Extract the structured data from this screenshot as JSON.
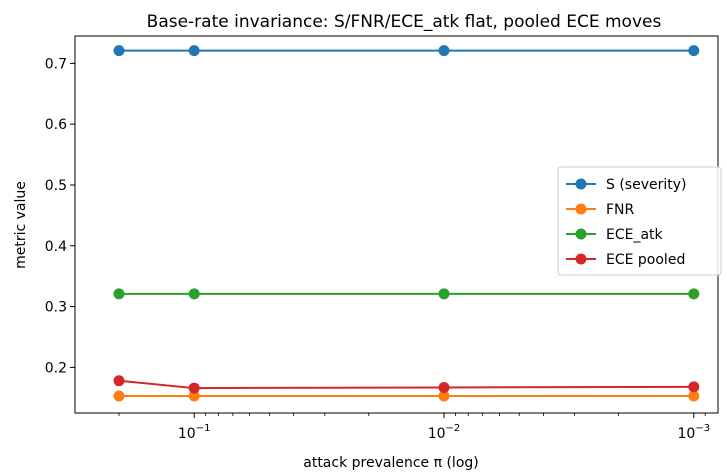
{
  "chart_data": {
    "type": "line",
    "title": "Base-rate invariance: S/FNR/ECE_atk flat, pooled ECE moves",
    "xlabel": "attack prevalence π (log)",
    "ylabel": "metric value",
    "x_scale": "log",
    "x_inverted": true,
    "x": [
      0.2,
      0.1,
      0.01,
      0.001
    ],
    "xlim": [
      0.3,
      0.0008
    ],
    "ylim": [
      0.125,
      0.745
    ],
    "x_ticks": [
      {
        "value": 0.1,
        "base": "10",
        "exp": "−1"
      },
      {
        "value": 0.01,
        "base": "10",
        "exp": "−2"
      },
      {
        "value": 0.001,
        "base": "10",
        "exp": "−3"
      }
    ],
    "y_ticks": [
      {
        "value": 0.2,
        "label": "0.2"
      },
      {
        "value": 0.3,
        "label": "0.3"
      },
      {
        "value": 0.4,
        "label": "0.4"
      },
      {
        "value": 0.5,
        "label": "0.5"
      },
      {
        "value": 0.6,
        "label": "0.6"
      },
      {
        "value": 0.7,
        "label": "0.7"
      }
    ],
    "grid": false,
    "legend_position": "center-right",
    "series": [
      {
        "name": "S (severity)",
        "color": "#1f77b4",
        "values": [
          0.721,
          0.721,
          0.721,
          0.721
        ]
      },
      {
        "name": "FNR",
        "color": "#ff7f0e",
        "values": [
          0.153,
          0.153,
          0.153,
          0.153
        ]
      },
      {
        "name": "ECE_atk",
        "color": "#2ca02c",
        "values": [
          0.321,
          0.321,
          0.321,
          0.321
        ]
      },
      {
        "name": "ECE pooled",
        "color": "#d62728",
        "values": [
          0.178,
          0.166,
          0.167,
          0.168
        ]
      }
    ]
  }
}
